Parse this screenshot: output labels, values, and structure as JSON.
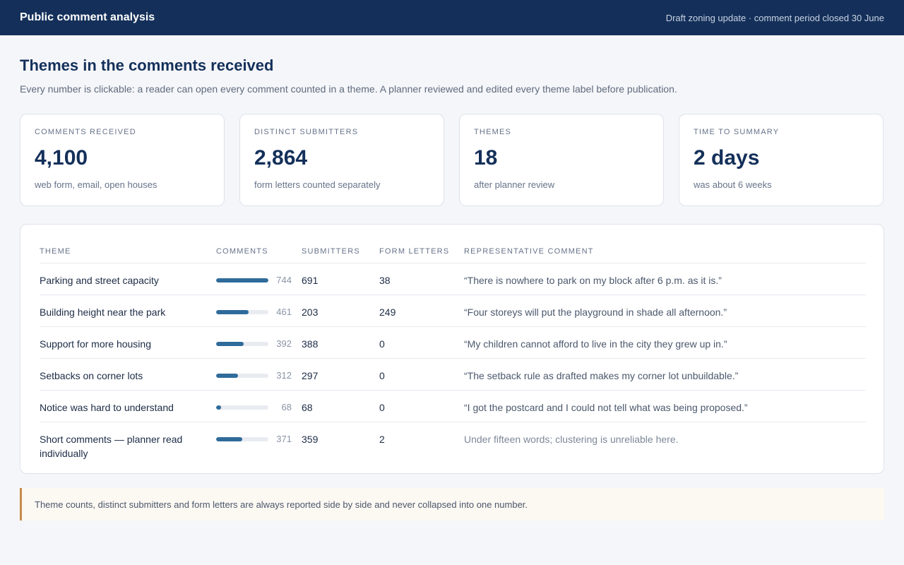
{
  "header": {
    "app_title": "Public comment analysis",
    "context": "Draft zoning update · comment period closed 30 June"
  },
  "page": {
    "title": "Themes in the comments received",
    "subtitle": "Every number is clickable: a reader can open every comment counted in a theme. A planner reviewed and edited every theme label before publication."
  },
  "stats": [
    {
      "label": "Comments received",
      "value": "4,100",
      "note": "web form, email, open houses"
    },
    {
      "label": "Distinct submitters",
      "value": "2,864",
      "note": "form letters counted separately"
    },
    {
      "label": "Themes",
      "value": "18",
      "note": "after planner review"
    },
    {
      "label": "Time to summary",
      "value": "2 days",
      "note": "was about 6 weeks"
    }
  ],
  "table": {
    "headers": [
      "Theme",
      "Comments",
      "Submitters",
      "Form letters",
      "Representative comment"
    ],
    "max_comments": 744,
    "rows": [
      {
        "theme": "Parking and street capacity",
        "comments": 744,
        "comments_label": "744",
        "submitters": "691",
        "form_letters": "38",
        "quote": "“There is nowhere to park on my block after 6 p.m. as it is.”"
      },
      {
        "theme": "Building height near the park",
        "comments": 461,
        "comments_label": "461",
        "submitters": "203",
        "form_letters": "249",
        "quote": "“Four storeys will put the playground in shade all afternoon.”"
      },
      {
        "theme": "Support for more housing",
        "comments": 392,
        "comments_label": "392",
        "submitters": "388",
        "form_letters": "0",
        "quote": "“My children cannot afford to live in the city they grew up in.”"
      },
      {
        "theme": "Setbacks on corner lots",
        "comments": 312,
        "comments_label": "312",
        "submitters": "297",
        "form_letters": "0",
        "quote": "“The setback rule as drafted makes my corner lot unbuildable.”"
      },
      {
        "theme": "Notice was hard to understand",
        "comments": 68,
        "comments_label": "68",
        "submitters": "68",
        "form_letters": "0",
        "quote": "“I got the postcard and I could not tell what was being proposed.”"
      },
      {
        "theme": "Short comments — planner read individually",
        "comments": 371,
        "comments_label": "371",
        "submitters": "359",
        "form_letters": "2",
        "quote": "Under fifteen words; clustering is unreliable here.",
        "muted": true
      }
    ]
  },
  "footer_note": "Theme counts, distinct submitters and form letters are always reported side by side and never collapsed into one number."
}
